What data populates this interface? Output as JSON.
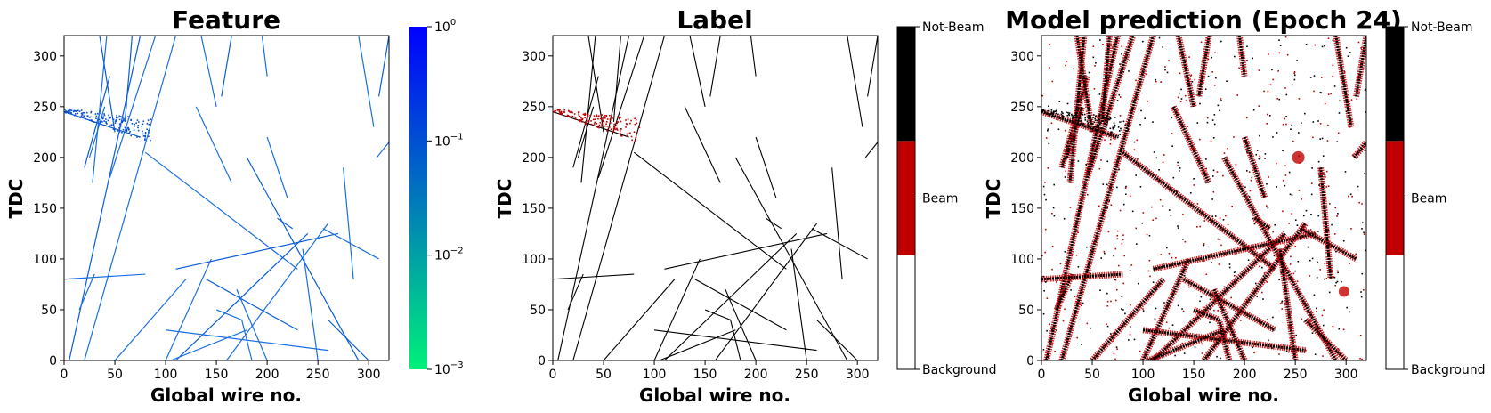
{
  "chart_data": [
    {
      "type": "heatmap",
      "title": "Feature",
      "xlabel": "Global wire no.",
      "ylabel": "TDC",
      "xlim": [
        0,
        320
      ],
      "ylim": [
        0,
        320
      ],
      "xticks": [
        "0",
        "50",
        "100",
        "150",
        "200",
        "250",
        "300"
      ],
      "yticks": [
        "0",
        "50",
        "100",
        "150",
        "200",
        "250",
        "300"
      ],
      "colorbar": {
        "scale": "log",
        "range": [
          0.001,
          1
        ],
        "colors": [
          "#00f07a",
          "#0000ff"
        ],
        "ticks": [
          {
            "base": "10",
            "exp": "0"
          },
          {
            "base": "10",
            "exp": "−1"
          },
          {
            "base": "10",
            "exp": "−2"
          },
          {
            "base": "10",
            "exp": "−3"
          }
        ]
      },
      "tracks": [
        [
          [
            5,
            0
          ],
          [
            75,
            320
          ]
        ],
        [
          [
            15,
            50
          ],
          [
            30,
            85
          ]
        ],
        [
          [
            20,
            0
          ],
          [
            110,
            320
          ]
        ],
        [
          [
            20,
            190
          ],
          [
            45,
            280
          ]
        ],
        [
          [
            25,
            200
          ],
          [
            40,
            250
          ]
        ],
        [
          [
            28,
            175
          ],
          [
            42,
            320
          ]
        ],
        [
          [
            35,
            320
          ],
          [
            50,
            225
          ]
        ],
        [
          [
            45,
            180
          ],
          [
            90,
            320
          ]
        ],
        [
          [
            50,
            0
          ],
          [
            120,
            80
          ]
        ],
        [
          [
            60,
            235
          ],
          [
            67,
            320
          ]
        ],
        [
          [
            80,
            205
          ],
          [
            230,
            90
          ]
        ],
        [
          [
            100,
            0
          ],
          [
            145,
            100
          ]
        ],
        [
          [
            110,
            0
          ],
          [
            240,
            125
          ]
        ],
        [
          [
            100,
            30
          ],
          [
            260,
            10
          ]
        ],
        [
          [
            105,
            0
          ],
          [
            180,
            30
          ]
        ],
        [
          [
            110,
            90
          ],
          [
            270,
            125
          ]
        ],
        [
          [
            130,
            250
          ],
          [
            165,
            175
          ]
        ],
        [
          [
            135,
            320
          ],
          [
            150,
            250
          ]
        ],
        [
          [
            140,
            80
          ],
          [
            230,
            30
          ]
        ],
        [
          [
            150,
            50
          ],
          [
            175,
            40
          ]
        ],
        [
          [
            160,
            0
          ],
          [
            260,
            135
          ]
        ],
        [
          [
            165,
            320
          ],
          [
            155,
            260
          ]
        ],
        [
          [
            170,
            70
          ],
          [
            200,
            0
          ]
        ],
        [
          [
            175,
            40
          ],
          [
            185,
            0
          ]
        ],
        [
          [
            180,
            200
          ],
          [
            290,
            0
          ]
        ],
        [
          [
            195,
            320
          ],
          [
            200,
            280
          ]
        ],
        [
          [
            200,
            220
          ],
          [
            220,
            160
          ]
        ],
        [
          [
            210,
            140
          ],
          [
            225,
            130
          ]
        ],
        [
          [
            250,
            0
          ],
          [
            235,
            110
          ]
        ],
        [
          [
            255,
            130
          ],
          [
            310,
            100
          ]
        ],
        [
          [
            260,
            40
          ],
          [
            300,
            0
          ]
        ],
        [
          [
            275,
            190
          ],
          [
            285,
            80
          ]
        ],
        [
          [
            290,
            320
          ],
          [
            305,
            230
          ]
        ],
        [
          [
            310,
            260
          ],
          [
            320,
            320
          ]
        ],
        [
          [
            308,
            200
          ],
          [
            320,
            215
          ]
        ],
        [
          [
            0,
            80
          ],
          [
            80,
            85
          ]
        ],
        [
          [
            0,
            245
          ],
          [
            75,
            220
          ]
        ]
      ],
      "beam_region": {
        "x": [
          0,
          85
        ],
        "y": [
          225,
          255
        ]
      }
    },
    {
      "type": "heatmap",
      "title": "Label",
      "xlabel": "Global wire no.",
      "ylabel": "TDC",
      "xlim": [
        0,
        320
      ],
      "ylim": [
        0,
        320
      ],
      "xticks": [
        "0",
        "50",
        "100",
        "150",
        "200",
        "250",
        "300"
      ],
      "yticks": [
        "0",
        "50",
        "100",
        "150",
        "200",
        "250",
        "300"
      ],
      "colorbar": {
        "scale": "categorical",
        "categories": [
          "Background",
          "Beam",
          "Not-Beam"
        ],
        "colors": [
          "#ffffff",
          "#c00000",
          "#000000"
        ]
      }
    },
    {
      "type": "heatmap",
      "title": "Model prediction (Epoch 24)",
      "xlabel": "Global wire no.",
      "ylabel": "TDC",
      "xlim": [
        0,
        320
      ],
      "ylim": [
        0,
        320
      ],
      "xticks": [
        "0",
        "50",
        "100",
        "150",
        "200",
        "250",
        "300"
      ],
      "yticks": [
        "0",
        "50",
        "100",
        "150",
        "200",
        "250",
        "300"
      ],
      "colorbar": {
        "scale": "categorical",
        "categories": [
          "Background",
          "Beam",
          "Not-Beam"
        ],
        "colors": [
          "#ffffff",
          "#c00000",
          "#000000"
        ]
      }
    }
  ]
}
